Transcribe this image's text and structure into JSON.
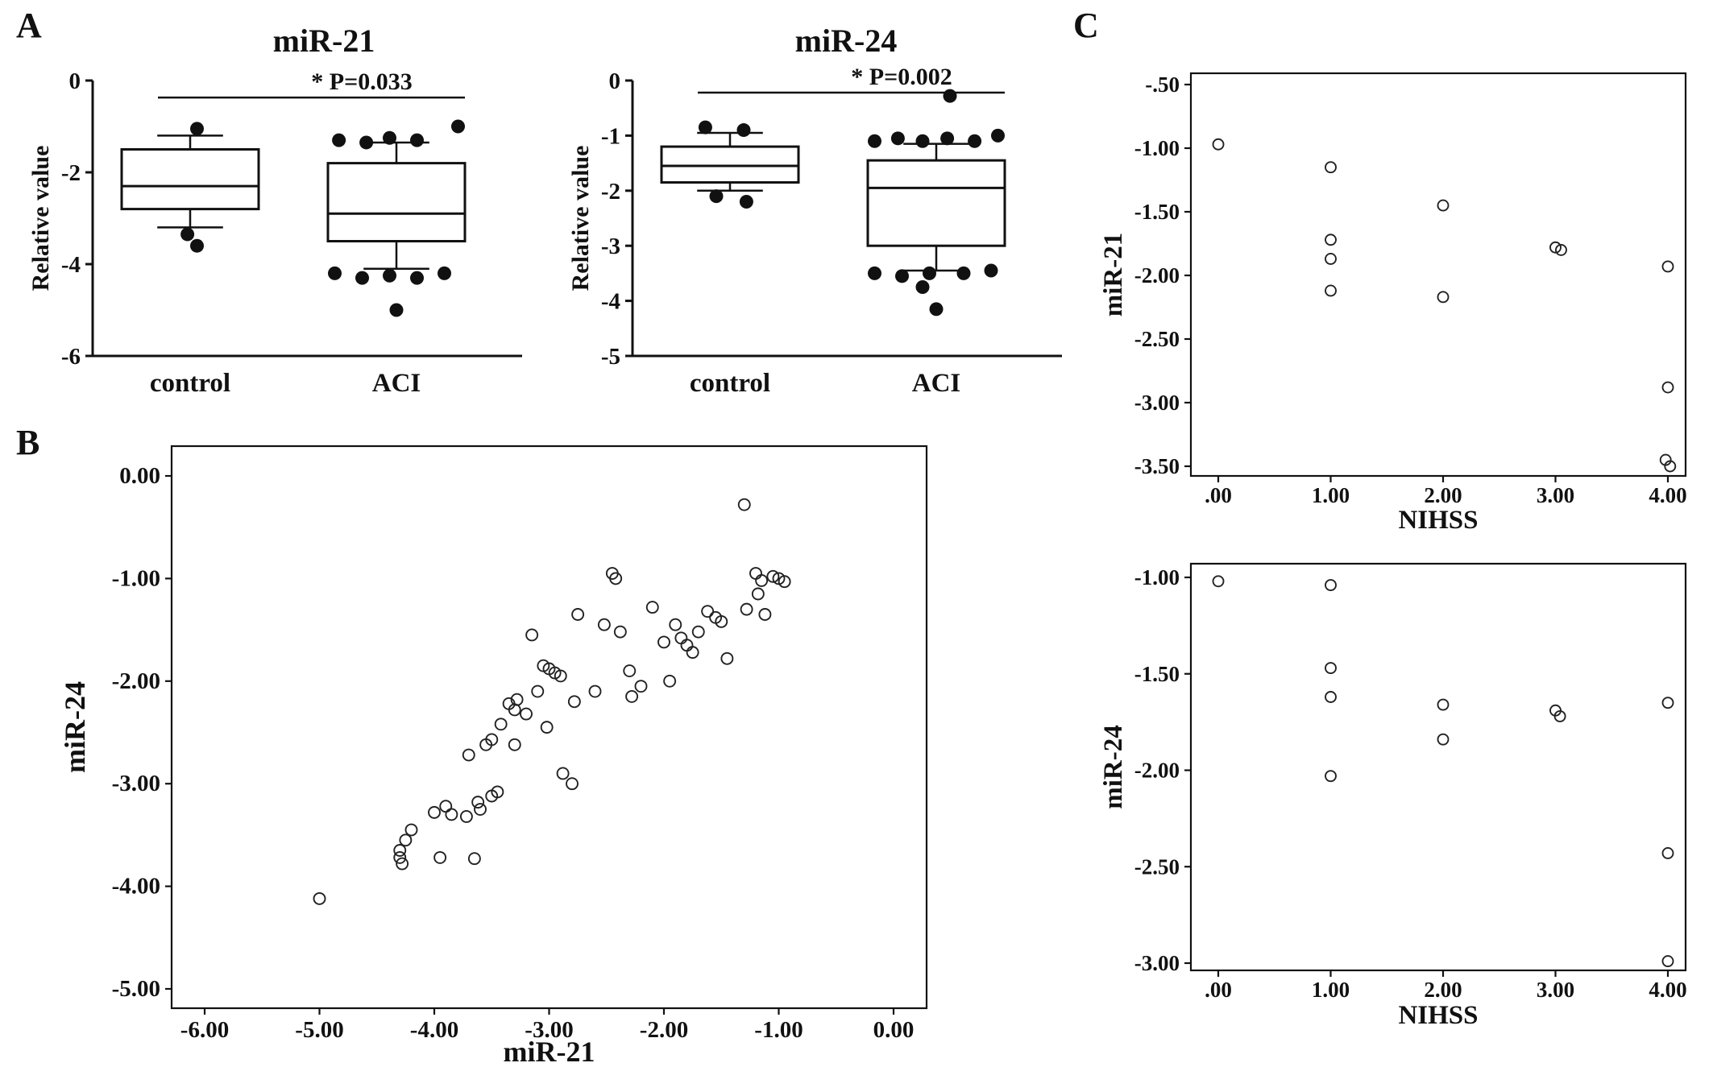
{
  "figure_labels": {
    "a": "A",
    "b": "B",
    "c": "C"
  },
  "colors": {
    "ink": "#111111",
    "background": "#ffffff"
  },
  "chart_data": [
    {
      "id": "boxplot_mir21",
      "type": "box",
      "title": "miR-21",
      "significance": "* P=0.033",
      "ylabel": "Relative value",
      "ylim": [
        -6,
        0
      ],
      "grid": false,
      "yticks": [
        {
          "v": 0,
          "label": "0"
        },
        {
          "v": -2,
          "label": "-2"
        },
        {
          "v": -4,
          "label": "-4"
        },
        {
          "v": -6,
          "label": "-6"
        }
      ],
      "categories": [
        "control",
        "ACI"
      ],
      "boxes": [
        {
          "label": "control",
          "whisker_high": -1.2,
          "q3": -1.5,
          "median": -2.3,
          "q1": -2.8,
          "whisker_low": -3.2,
          "outliers_high": [
            {
              "dx": 0.05,
              "v": -1.05
            }
          ],
          "outliers_low": [
            {
              "dx": -0.02,
              "v": -3.35
            },
            {
              "dx": 0.05,
              "v": -3.6
            }
          ]
        },
        {
          "label": "ACI",
          "whisker_high": -1.35,
          "q3": -1.8,
          "median": -2.9,
          "q1": -3.5,
          "whisker_low": -4.1,
          "outliers_high": [
            {
              "dx": -0.42,
              "v": -1.3
            },
            {
              "dx": -0.22,
              "v": -1.35
            },
            {
              "dx": -0.05,
              "v": -1.25
            },
            {
              "dx": 0.15,
              "v": -1.3
            },
            {
              "dx": 0.45,
              "v": -1.0
            }
          ],
          "outliers_low": [
            {
              "dx": -0.45,
              "v": -4.2
            },
            {
              "dx": -0.25,
              "v": -4.3
            },
            {
              "dx": -0.05,
              "v": -4.25
            },
            {
              "dx": 0.15,
              "v": -4.3
            },
            {
              "dx": 0.35,
              "v": -4.2
            },
            {
              "dx": 0.0,
              "v": -5.0
            }
          ]
        }
      ]
    },
    {
      "id": "boxplot_mir24",
      "type": "box",
      "title": "miR-24",
      "significance": "* P=0.002",
      "ylabel": "Relative value",
      "ylim": [
        -5,
        0
      ],
      "grid": false,
      "yticks": [
        {
          "v": 0,
          "label": "0"
        },
        {
          "v": -1,
          "label": "-1"
        },
        {
          "v": -2,
          "label": "-2"
        },
        {
          "v": -3,
          "label": "-3"
        },
        {
          "v": -4,
          "label": "-4"
        },
        {
          "v": -5,
          "label": "-5"
        }
      ],
      "categories": [
        "control",
        "ACI"
      ],
      "boxes": [
        {
          "label": "control",
          "whisker_high": -0.95,
          "q3": -1.2,
          "median": -1.55,
          "q1": -1.85,
          "whisker_low": -2.0,
          "outliers_high": [
            {
              "dx": -0.18,
              "v": -0.85
            },
            {
              "dx": 0.1,
              "v": -0.9
            }
          ],
          "outliers_low": [
            {
              "dx": -0.1,
              "v": -2.1
            },
            {
              "dx": 0.12,
              "v": -2.2
            }
          ]
        },
        {
          "label": "ACI",
          "whisker_high": -1.15,
          "q3": -1.45,
          "median": -1.95,
          "q1": -3.0,
          "whisker_low": -3.45,
          "outliers_high": [
            {
              "dx": -0.45,
              "v": -1.1
            },
            {
              "dx": -0.28,
              "v": -1.05
            },
            {
              "dx": -0.1,
              "v": -1.1
            },
            {
              "dx": 0.08,
              "v": -1.05
            },
            {
              "dx": 0.28,
              "v": -1.1
            },
            {
              "dx": 0.45,
              "v": -1.0
            },
            {
              "dx": 0.1,
              "v": -0.28
            }
          ],
          "outliers_low": [
            {
              "dx": -0.45,
              "v": -3.5
            },
            {
              "dx": -0.25,
              "v": -3.55
            },
            {
              "dx": -0.05,
              "v": -3.5
            },
            {
              "dx": 0.2,
              "v": -3.5
            },
            {
              "dx": 0.4,
              "v": -3.45
            },
            {
              "dx": -0.1,
              "v": -3.75
            },
            {
              "dx": 0.0,
              "v": -4.15
            }
          ]
        }
      ]
    },
    {
      "id": "scatter_b",
      "type": "scatter",
      "xlabel": "miR-21",
      "ylabel": "miR-24",
      "xlim": [
        -6.5,
        0.4
      ],
      "ylim": [
        -5.2,
        0.3
      ],
      "grid": false,
      "xticks": [
        {
          "v": -6,
          "label": "-6.00"
        },
        {
          "v": -5,
          "label": "-5.00"
        },
        {
          "v": -4,
          "label": "-4.00"
        },
        {
          "v": -3,
          "label": "-3.00"
        },
        {
          "v": -2,
          "label": "-2.00"
        },
        {
          "v": -1,
          "label": "-1.00"
        },
        {
          "v": 0,
          "label": "0.00"
        }
      ],
      "yticks": [
        {
          "v": 0,
          "label": "0.00"
        },
        {
          "v": -1,
          "label": "-1.00"
        },
        {
          "v": -2,
          "label": "-2.00"
        },
        {
          "v": -3,
          "label": "-3.00"
        },
        {
          "v": -4,
          "label": "-4.00"
        },
        {
          "v": -5,
          "label": "-5.00"
        }
      ],
      "points": [
        [
          -5.0,
          -4.12
        ],
        [
          -4.3,
          -3.72
        ],
        [
          -4.28,
          -3.78
        ],
        [
          -4.25,
          -3.55
        ],
        [
          -4.2,
          -3.45
        ],
        [
          -4.3,
          -3.65
        ],
        [
          -4.0,
          -3.28
        ],
        [
          -3.95,
          -3.72
        ],
        [
          -3.9,
          -3.22
        ],
        [
          -3.85,
          -3.3
        ],
        [
          -3.72,
          -3.32
        ],
        [
          -3.7,
          -2.72
        ],
        [
          -3.65,
          -3.73
        ],
        [
          -3.6,
          -3.25
        ],
        [
          -3.62,
          -3.18
        ],
        [
          -3.55,
          -2.62
        ],
        [
          -3.5,
          -2.57
        ],
        [
          -3.5,
          -3.12
        ],
        [
          -3.45,
          -3.08
        ],
        [
          -3.42,
          -2.42
        ],
        [
          -3.35,
          -2.22
        ],
        [
          -3.3,
          -2.28
        ],
        [
          -3.3,
          -2.62
        ],
        [
          -3.28,
          -2.18
        ],
        [
          -3.2,
          -2.32
        ],
        [
          -3.15,
          -1.55
        ],
        [
          -3.1,
          -2.1
        ],
        [
          -3.05,
          -1.85
        ],
        [
          -3.0,
          -1.88
        ],
        [
          -3.02,
          -2.45
        ],
        [
          -2.95,
          -1.92
        ],
        [
          -2.9,
          -1.95
        ],
        [
          -2.88,
          -2.9
        ],
        [
          -2.8,
          -3.0
        ],
        [
          -2.78,
          -2.2
        ],
        [
          -2.75,
          -1.35
        ],
        [
          -2.6,
          -2.1
        ],
        [
          -2.52,
          -1.45
        ],
        [
          -2.45,
          -0.95
        ],
        [
          -2.42,
          -1.0
        ],
        [
          -2.38,
          -1.52
        ],
        [
          -2.3,
          -1.9
        ],
        [
          -2.28,
          -2.15
        ],
        [
          -2.2,
          -2.05
        ],
        [
          -2.1,
          -1.28
        ],
        [
          -2.0,
          -1.62
        ],
        [
          -1.95,
          -2.0
        ],
        [
          -1.9,
          -1.45
        ],
        [
          -1.85,
          -1.58
        ],
        [
          -1.8,
          -1.65
        ],
        [
          -1.75,
          -1.72
        ],
        [
          -1.7,
          -1.52
        ],
        [
          -1.62,
          -1.32
        ],
        [
          -1.55,
          -1.38
        ],
        [
          -1.5,
          -1.42
        ],
        [
          -1.45,
          -1.78
        ],
        [
          -1.3,
          -0.28
        ],
        [
          -1.28,
          -1.3
        ],
        [
          -1.2,
          -0.95
        ],
        [
          -1.15,
          -1.02
        ],
        [
          -1.12,
          -1.35
        ],
        [
          -1.18,
          -1.15
        ],
        [
          -1.05,
          -0.98
        ],
        [
          -1.0,
          -1.0
        ],
        [
          -0.95,
          -1.03
        ]
      ]
    },
    {
      "id": "scatter_c_mir21",
      "type": "scatter",
      "xlabel": "NIHSS",
      "ylabel": "miR-21",
      "xlim": [
        -0.3,
        4.3
      ],
      "ylim": [
        -3.6,
        -0.4
      ],
      "grid": false,
      "xticks": [
        {
          "v": 0,
          "label": ".00"
        },
        {
          "v": 1,
          "label": "1.00"
        },
        {
          "v": 2,
          "label": "2.00"
        },
        {
          "v": 3,
          "label": "3.00"
        },
        {
          "v": 4,
          "label": "4.00"
        }
      ],
      "yticks": [
        {
          "v": -0.5,
          "label": "-.50"
        },
        {
          "v": -1.0,
          "label": "-1.00"
        },
        {
          "v": -1.5,
          "label": "-1.50"
        },
        {
          "v": -2.0,
          "label": "-2.00"
        },
        {
          "v": -2.5,
          "label": "-2.50"
        },
        {
          "v": -3.0,
          "label": "-3.00"
        },
        {
          "v": -3.5,
          "label": "-3.50"
        }
      ],
      "points": [
        [
          0,
          -0.97
        ],
        [
          1,
          -1.15
        ],
        [
          1,
          -1.72
        ],
        [
          1,
          -1.87
        ],
        [
          1,
          -2.12
        ],
        [
          2,
          -1.45
        ],
        [
          2,
          -2.17
        ],
        [
          3,
          -1.78
        ],
        [
          3.05,
          -1.8
        ],
        [
          4,
          -1.93
        ],
        [
          4,
          -2.88
        ],
        [
          3.98,
          -3.45
        ],
        [
          4.02,
          -3.5
        ]
      ]
    },
    {
      "id": "scatter_c_mir24",
      "type": "scatter",
      "xlabel": "NIHSS",
      "ylabel": "miR-24",
      "xlim": [
        -0.3,
        4.3
      ],
      "ylim": [
        -3.1,
        -0.9
      ],
      "grid": false,
      "xticks": [
        {
          "v": 0,
          "label": ".00"
        },
        {
          "v": 1,
          "label": "1.00"
        },
        {
          "v": 2,
          "label": "2.00"
        },
        {
          "v": 3,
          "label": "3.00"
        },
        {
          "v": 4,
          "label": "4.00"
        }
      ],
      "yticks": [
        {
          "v": -1.0,
          "label": "-1.00"
        },
        {
          "v": -1.5,
          "label": "-1.50"
        },
        {
          "v": -2.0,
          "label": "-2.00"
        },
        {
          "v": -2.5,
          "label": "-2.50"
        },
        {
          "v": -3.0,
          "label": "-3.00"
        }
      ],
      "points": [
        [
          0,
          -1.02
        ],
        [
          1,
          -1.04
        ],
        [
          1,
          -1.47
        ],
        [
          1,
          -1.62
        ],
        [
          1,
          -2.03
        ],
        [
          2,
          -1.66
        ],
        [
          2,
          -1.84
        ],
        [
          3,
          -1.69
        ],
        [
          3.04,
          -1.72
        ],
        [
          4,
          -1.65
        ],
        [
          4,
          -2.43
        ],
        [
          4,
          -2.99
        ]
      ]
    }
  ]
}
